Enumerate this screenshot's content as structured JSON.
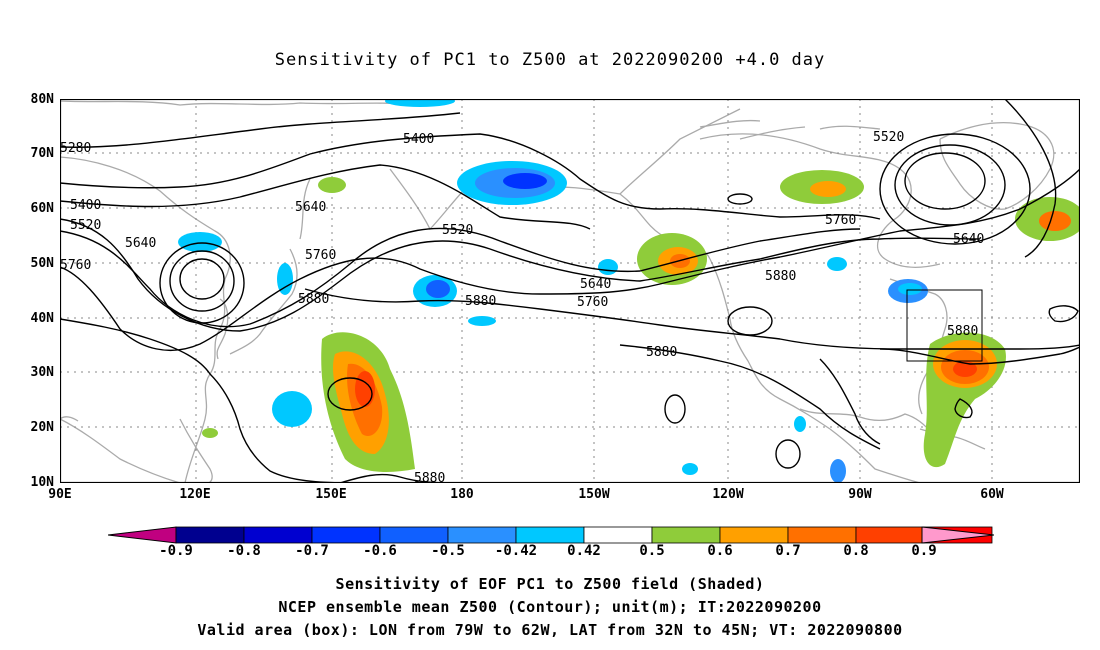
{
  "title": "Sensitivity of PC1 to Z500 at 2022090200 +4.0 day",
  "lat_labels": [
    "80N",
    "70N",
    "60N",
    "50N",
    "40N",
    "30N",
    "20N",
    "10N"
  ],
  "lon_labels": [
    "90E",
    "120E",
    "150E",
    "180",
    "150W",
    "120W",
    "90W",
    "60W"
  ],
  "colorbar": {
    "labels": [
      "-0.9",
      "-0.8",
      "-0.7",
      "-0.6",
      "-0.5",
      "-0.42",
      "0.42",
      "0.5",
      "0.6",
      "0.7",
      "0.8",
      "0.9"
    ],
    "colors": [
      "#c00080",
      "#00008f",
      "#0000d0",
      "#0033ff",
      "#1060ff",
      "#2a90ff",
      "#00c8ff",
      "#ffffff",
      "#8fcc3a",
      "#ffa000",
      "#ff7000",
      "#ff4000",
      "#ff0000",
      "#ff99cc"
    ]
  },
  "contour_labels": [
    {
      "text": "5280"
    },
    {
      "text": "5400"
    },
    {
      "text": "5520"
    },
    {
      "text": "5400"
    },
    {
      "text": "5520"
    },
    {
      "text": "5640"
    },
    {
      "text": "5640"
    },
    {
      "text": "5520"
    },
    {
      "text": "5760"
    },
    {
      "text": "5760"
    },
    {
      "text": "5880"
    },
    {
      "text": "5880"
    },
    {
      "text": "5640"
    },
    {
      "text": "5760"
    },
    {
      "text": "5880"
    },
    {
      "text": "5760"
    },
    {
      "text": "5640"
    },
    {
      "text": "5880"
    },
    {
      "text": "5880"
    },
    {
      "text": "5880"
    }
  ],
  "footer": {
    "line1": "Sensitivity of EOF PC1 to Z500 field (Shaded)",
    "line2": "NCEP ensemble mean Z500 (Contour); unit(m); IT:2022090200",
    "line3": "Valid area (box): LON from 79W to 62W, LAT from 32N to 45N; VT: 2022090800"
  }
}
